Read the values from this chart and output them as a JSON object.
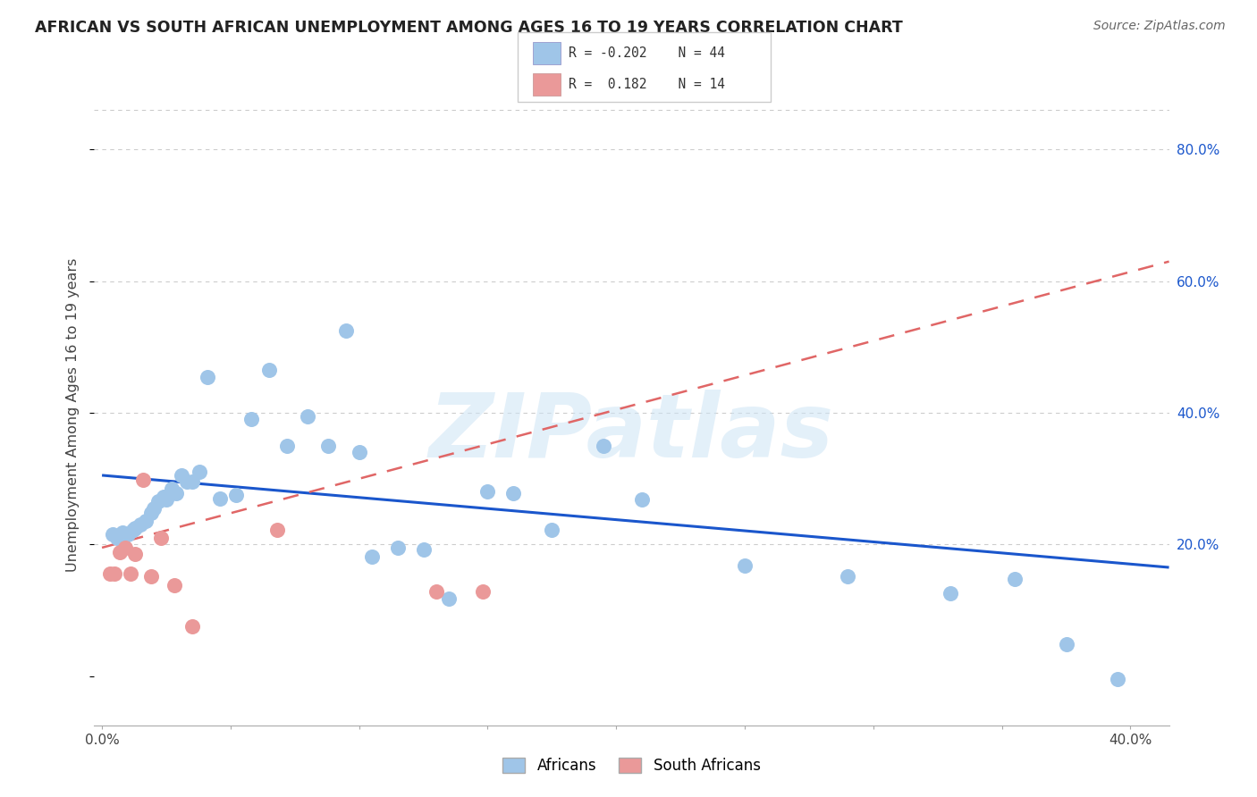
{
  "title": "AFRICAN VS SOUTH AFRICAN UNEMPLOYMENT AMONG AGES 16 TO 19 YEARS CORRELATION CHART",
  "source": "Source: ZipAtlas.com",
  "ylabel": "Unemployment Among Ages 16 to 19 years",
  "xlim": [
    -0.003,
    0.415
  ],
  "ylim": [
    -0.075,
    0.87
  ],
  "ytick_vals": [
    0.2,
    0.4,
    0.6,
    0.8
  ],
  "xtick_vals": [
    0.0,
    0.05,
    0.1,
    0.15,
    0.2,
    0.25,
    0.3,
    0.35,
    0.4
  ],
  "background_color": "#ffffff",
  "grid_color": "#cccccc",
  "watermark": "ZIPatlas",
  "blue_scatter_color": "#9fc5e8",
  "pink_scatter_color": "#ea9999",
  "blue_line_color": "#1a56cc",
  "pink_line_color": "#e06666",
  "right_tick_color": "#1a56cc",
  "africans_x": [
    0.004,
    0.006,
    0.008,
    0.01,
    0.012,
    0.013,
    0.015,
    0.017,
    0.019,
    0.02,
    0.022,
    0.024,
    0.025,
    0.027,
    0.029,
    0.031,
    0.033,
    0.035,
    0.038,
    0.041,
    0.046,
    0.052,
    0.058,
    0.065,
    0.072,
    0.08,
    0.088,
    0.095,
    0.1,
    0.105,
    0.115,
    0.125,
    0.135,
    0.15,
    0.16,
    0.175,
    0.195,
    0.21,
    0.25,
    0.29,
    0.33,
    0.355,
    0.375,
    0.395
  ],
  "africans_y": [
    0.215,
    0.21,
    0.218,
    0.215,
    0.222,
    0.225,
    0.23,
    0.235,
    0.248,
    0.255,
    0.265,
    0.272,
    0.268,
    0.285,
    0.278,
    0.305,
    0.295,
    0.295,
    0.31,
    0.455,
    0.27,
    0.275,
    0.39,
    0.465,
    0.35,
    0.395,
    0.35,
    0.525,
    0.34,
    0.182,
    0.195,
    0.192,
    0.118,
    0.28,
    0.278,
    0.222,
    0.35,
    0.268,
    0.168,
    0.152,
    0.125,
    0.148,
    0.048,
    -0.005
  ],
  "south_africans_x": [
    0.003,
    0.005,
    0.007,
    0.009,
    0.011,
    0.013,
    0.016,
    0.019,
    0.023,
    0.028,
    0.035,
    0.068,
    0.13,
    0.148
  ],
  "south_africans_y": [
    0.155,
    0.155,
    0.188,
    0.195,
    0.155,
    0.185,
    0.298,
    0.152,
    0.21,
    0.138,
    0.075,
    0.222,
    0.128,
    0.128
  ],
  "blue_trendline": [
    0.0,
    0.415,
    0.305,
    0.165
  ],
  "pink_trendline": [
    0.0,
    0.415,
    0.195,
    0.63
  ]
}
